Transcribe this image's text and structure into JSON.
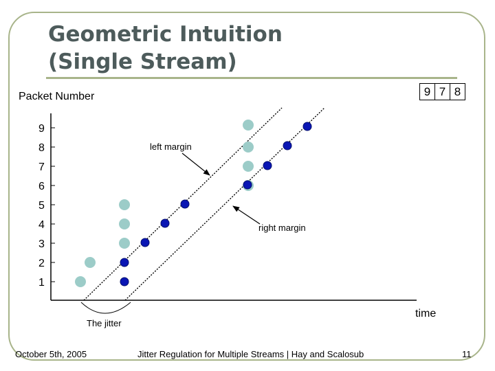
{
  "slide": {
    "title_line1": "Geometric Intuition",
    "title_line2": "(Single Stream)",
    "footer_left": "October 5th, 2005",
    "footer_center": "Jitter Regulation for Multiple Streams | Hay and Scalosub",
    "footer_right": "11"
  },
  "colors": {
    "frame": "#a8b48a",
    "title": "#4d5b5b",
    "arrival": "#9cccc8",
    "departure": "#0a16b4"
  },
  "diagram": {
    "y_axis_label": "Packet Number",
    "x_axis_label": "time",
    "y_ticks": [
      "1",
      "2",
      "3",
      "4",
      "5",
      "6",
      "7",
      "8",
      "9"
    ],
    "arrival_order": [
      "9",
      "7",
      "8"
    ],
    "labels": {
      "left_margin": "left margin",
      "right_margin": "right margin",
      "jitter": "The jitter"
    }
  }
}
